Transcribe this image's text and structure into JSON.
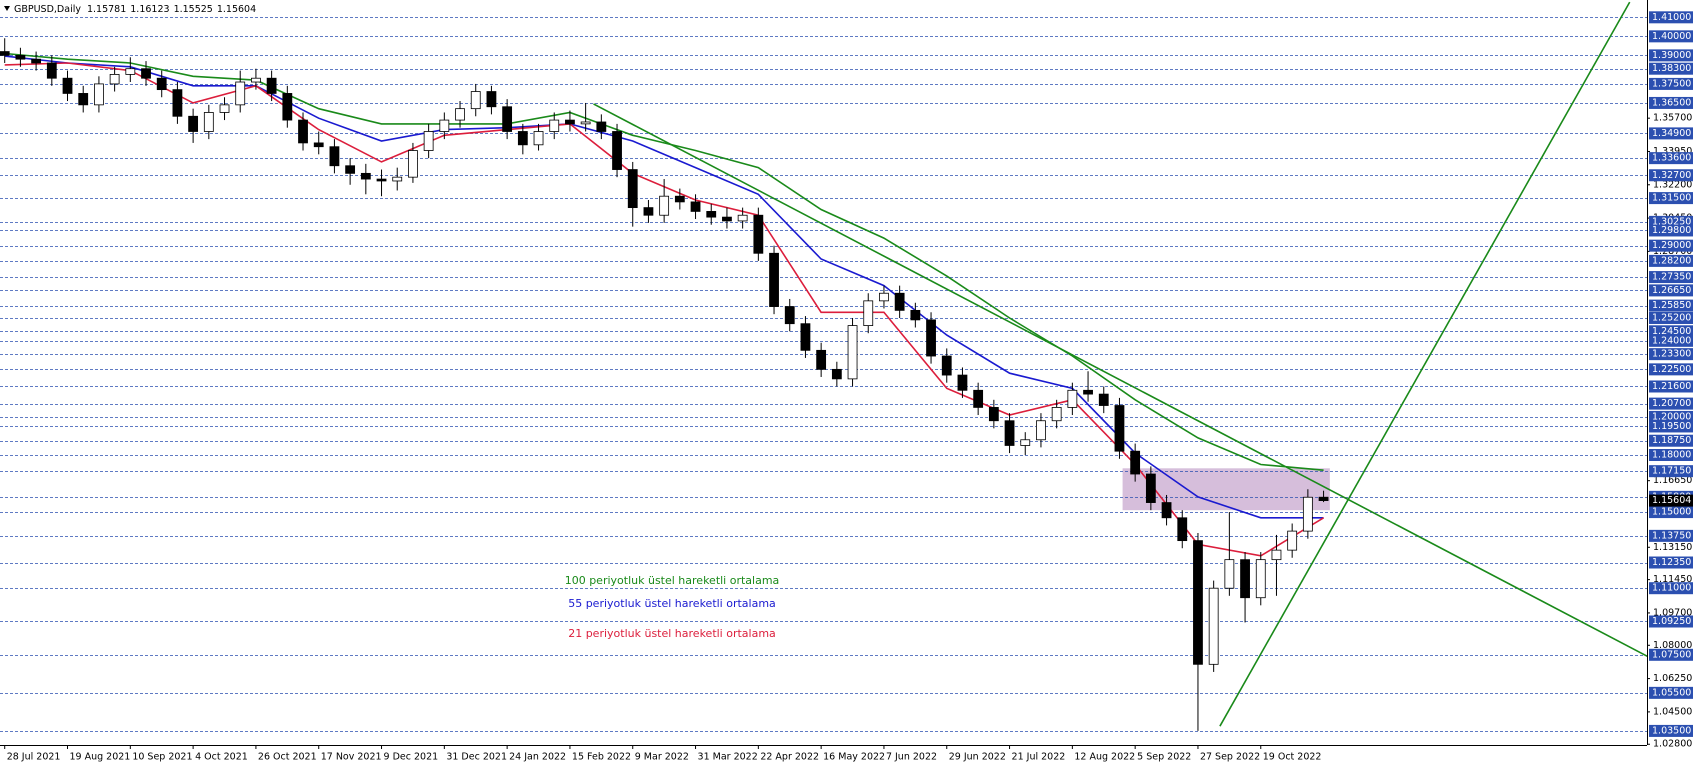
{
  "chart_data": {
    "type": "candlestick",
    "symbol": "GBPUSD,Daily",
    "xlim": [
      -0.3,
      104.6
    ],
    "ylim": [
      1.0276,
      1.4191
    ],
    "xticks": [
      {
        "value": 0,
        "label": "28 Jul 2021"
      },
      {
        "value": 4,
        "label": "19 Aug 2021"
      },
      {
        "value": 8,
        "label": "10 Sep 2021"
      },
      {
        "value": 12,
        "label": "4 Oct 2021"
      },
      {
        "value": 16,
        "label": "26 Oct 2021"
      },
      {
        "value": 20,
        "label": "17 Nov 2021"
      },
      {
        "value": 24,
        "label": "9 Dec 2021"
      },
      {
        "value": 28,
        "label": "31 Dec 2021"
      },
      {
        "value": 32,
        "label": "24 Jan 2022"
      },
      {
        "value": 36,
        "label": "15 Feb 2022"
      },
      {
        "value": 40,
        "label": "9 Mar 2022"
      },
      {
        "value": 44,
        "label": "31 Mar 2022"
      },
      {
        "value": 48,
        "label": "22 Apr 2022"
      },
      {
        "value": 52,
        "label": "16 May 2022"
      },
      {
        "value": 56,
        "label": "7 Jun 2022"
      },
      {
        "value": 60,
        "label": "29 Jun 2022"
      },
      {
        "value": 64,
        "label": "21 Jul 2022"
      },
      {
        "value": 68,
        "label": "12 Aug 2022"
      },
      {
        "value": 72,
        "label": "5 Sep 2022"
      },
      {
        "value": 76,
        "label": "27 Sep 2022"
      },
      {
        "value": 80,
        "label": "19 Oct 2022"
      }
    ],
    "yticks": [
      {
        "value": 1.357,
        "label": "1.35700"
      },
      {
        "value": 1.3395,
        "label": "1.33950"
      },
      {
        "value": 1.322,
        "label": "1.32200"
      },
      {
        "value": 1.3045,
        "label": "1.30450"
      },
      {
        "value": 1.287,
        "label": "1.28700"
      },
      {
        "value": 1.1665,
        "label": "1.16650"
      },
      {
        "value": 1.1315,
        "label": "1.13150"
      },
      {
        "value": 1.1145,
        "label": "1.11450"
      },
      {
        "value": 1.097,
        "label": "1.09700"
      },
      {
        "value": 1.08,
        "label": "1.08000"
      },
      {
        "value": 1.0625,
        "label": "1.06250"
      },
      {
        "value": 1.045,
        "label": "1.04500"
      },
      {
        "value": 1.028,
        "label": "1.02800"
      }
    ],
    "levels": [
      {
        "value": 1.41,
        "label": "1.41000"
      },
      {
        "value": 1.4,
        "label": "1.40000"
      },
      {
        "value": 1.39,
        "label": "1.39000"
      },
      {
        "value": 1.383,
        "label": "1.38300"
      },
      {
        "value": 1.375,
        "label": "1.37500"
      },
      {
        "value": 1.365,
        "label": "1.36500"
      },
      {
        "value": 1.349,
        "label": "1.34900"
      },
      {
        "value": 1.336,
        "label": "1.33600"
      },
      {
        "value": 1.327,
        "label": "1.32700"
      },
      {
        "value": 1.315,
        "label": "1.31500"
      },
      {
        "value": 1.3025,
        "label": "1.30250"
      },
      {
        "value": 1.298,
        "label": "1.29800"
      },
      {
        "value": 1.29,
        "label": "1.29000"
      },
      {
        "value": 1.282,
        "label": "1.28200"
      },
      {
        "value": 1.2735,
        "label": "1.27350"
      },
      {
        "value": 1.2665,
        "label": "1.26650"
      },
      {
        "value": 1.2585,
        "label": "1.25850"
      },
      {
        "value": 1.252,
        "label": "1.25200"
      },
      {
        "value": 1.245,
        "label": "1.24500"
      },
      {
        "value": 1.24,
        "label": "1.24000"
      },
      {
        "value": 1.233,
        "label": "1.23300"
      },
      {
        "value": 1.225,
        "label": "1.22500"
      },
      {
        "value": 1.216,
        "label": "1.21600"
      },
      {
        "value": 1.207,
        "label": "1.20700"
      },
      {
        "value": 1.2,
        "label": "1.20000"
      },
      {
        "value": 1.195,
        "label": "1.19500"
      },
      {
        "value": 1.1875,
        "label": "1.18750"
      },
      {
        "value": 1.18,
        "label": "1.18000"
      },
      {
        "value": 1.1715,
        "label": "1.17150"
      },
      {
        "value": 1.158,
        "label": "1.15800"
      },
      {
        "value": 1.15,
        "label": "1.15000"
      },
      {
        "value": 1.1375,
        "label": "1.13750"
      },
      {
        "value": 1.1235,
        "label": "1.12350"
      },
      {
        "value": 1.11,
        "label": "1.11000"
      },
      {
        "value": 1.0925,
        "label": "1.09250"
      },
      {
        "value": 1.075,
        "label": "1.07500"
      },
      {
        "value": 1.055,
        "label": "1.05500"
      },
      {
        "value": 1.035,
        "label": "1.03500"
      }
    ],
    "level_color": "#2b4fb0",
    "candle_color": "#000000",
    "candles": [
      [
        1.392,
        1.399,
        1.386,
        1.39
      ],
      [
        1.39,
        1.394,
        1.384,
        1.388
      ],
      [
        1.388,
        1.392,
        1.382,
        1.386
      ],
      [
        1.386,
        1.39,
        1.374,
        1.378
      ],
      [
        1.378,
        1.382,
        1.366,
        1.37
      ],
      [
        1.37,
        1.374,
        1.36,
        1.364
      ],
      [
        1.364,
        1.379,
        1.36,
        1.375
      ],
      [
        1.375,
        1.384,
        1.371,
        1.38
      ],
      [
        1.38,
        1.389,
        1.376,
        1.383
      ],
      [
        1.383,
        1.387,
        1.374,
        1.378
      ],
      [
        1.378,
        1.382,
        1.368,
        1.372
      ],
      [
        1.372,
        1.376,
        1.354,
        1.358
      ],
      [
        1.358,
        1.362,
        1.344,
        1.35
      ],
      [
        1.35,
        1.364,
        1.346,
        1.36
      ],
      [
        1.36,
        1.368,
        1.356,
        1.364
      ],
      [
        1.364,
        1.382,
        1.36,
        1.376
      ],
      [
        1.376,
        1.383,
        1.372,
        1.378
      ],
      [
        1.378,
        1.382,
        1.366,
        1.37
      ],
      [
        1.37,
        1.374,
        1.352,
        1.356
      ],
      [
        1.356,
        1.36,
        1.34,
        1.344
      ],
      [
        1.344,
        1.35,
        1.338,
        1.342
      ],
      [
        1.342,
        1.346,
        1.328,
        1.332
      ],
      [
        1.332,
        1.336,
        1.322,
        1.328
      ],
      [
        1.328,
        1.333,
        1.317,
        1.325
      ],
      [
        1.325,
        1.33,
        1.316,
        1.324
      ],
      [
        1.324,
        1.331,
        1.319,
        1.326
      ],
      [
        1.326,
        1.344,
        1.323,
        1.34
      ],
      [
        1.34,
        1.354,
        1.336,
        1.35
      ],
      [
        1.35,
        1.36,
        1.346,
        1.356
      ],
      [
        1.356,
        1.366,
        1.352,
        1.362
      ],
      [
        1.362,
        1.375,
        1.358,
        1.371
      ],
      [
        1.371,
        1.374,
        1.359,
        1.363
      ],
      [
        1.363,
        1.367,
        1.346,
        1.35
      ],
      [
        1.35,
        1.354,
        1.338,
        1.343
      ],
      [
        1.343,
        1.354,
        1.34,
        1.35
      ],
      [
        1.35,
        1.36,
        1.346,
        1.356
      ],
      [
        1.356,
        1.361,
        1.35,
        1.354
      ],
      [
        1.354,
        1.365,
        1.35,
        1.355
      ],
      [
        1.355,
        1.359,
        1.346,
        1.35
      ],
      [
        1.35,
        1.354,
        1.326,
        1.33
      ],
      [
        1.33,
        1.334,
        1.3,
        1.31
      ],
      [
        1.31,
        1.314,
        1.302,
        1.306
      ],
      [
        1.306,
        1.325,
        1.302,
        1.316
      ],
      [
        1.316,
        1.32,
        1.309,
        1.313
      ],
      [
        1.313,
        1.317,
        1.304,
        1.308
      ],
      [
        1.308,
        1.312,
        1.301,
        1.305
      ],
      [
        1.305,
        1.31,
        1.299,
        1.303
      ],
      [
        1.303,
        1.31,
        1.299,
        1.306
      ],
      [
        1.306,
        1.31,
        1.282,
        1.286
      ],
      [
        1.286,
        1.29,
        1.254,
        1.258
      ],
      [
        1.258,
        1.262,
        1.245,
        1.249
      ],
      [
        1.249,
        1.253,
        1.231,
        1.235
      ],
      [
        1.235,
        1.239,
        1.221,
        1.225
      ],
      [
        1.225,
        1.229,
        1.216,
        1.22
      ],
      [
        1.22,
        1.252,
        1.216,
        1.248
      ],
      [
        1.248,
        1.265,
        1.244,
        1.261
      ],
      [
        1.261,
        1.269,
        1.257,
        1.265
      ],
      [
        1.265,
        1.269,
        1.252,
        1.256
      ],
      [
        1.256,
        1.26,
        1.247,
        1.251
      ],
      [
        1.251,
        1.255,
        1.228,
        1.232
      ],
      [
        1.232,
        1.236,
        1.218,
        1.222
      ],
      [
        1.222,
        1.226,
        1.21,
        1.214
      ],
      [
        1.214,
        1.218,
        1.201,
        1.205
      ],
      [
        1.205,
        1.209,
        1.194,
        1.198
      ],
      [
        1.198,
        1.202,
        1.181,
        1.185
      ],
      [
        1.185,
        1.192,
        1.18,
        1.188
      ],
      [
        1.188,
        1.202,
        1.184,
        1.198
      ],
      [
        1.198,
        1.209,
        1.194,
        1.205
      ],
      [
        1.205,
        1.218,
        1.201,
        1.214
      ],
      [
        1.214,
        1.224,
        1.208,
        1.212
      ],
      [
        1.212,
        1.216,
        1.202,
        1.206
      ],
      [
        1.206,
        1.21,
        1.178,
        1.182
      ],
      [
        1.182,
        1.186,
        1.166,
        1.17
      ],
      [
        1.17,
        1.174,
        1.151,
        1.155
      ],
      [
        1.155,
        1.159,
        1.143,
        1.147
      ],
      [
        1.147,
        1.151,
        1.131,
        1.135
      ],
      [
        1.135,
        1.139,
        1.035,
        1.07
      ],
      [
        1.07,
        1.114,
        1.066,
        1.11
      ],
      [
        1.11,
        1.15,
        1.106,
        1.125
      ],
      [
        1.125,
        1.129,
        1.092,
        1.105
      ],
      [
        1.105,
        1.129,
        1.101,
        1.125
      ],
      [
        1.125,
        1.138,
        1.106,
        1.13
      ],
      [
        1.13,
        1.144,
        1.126,
        1.14
      ],
      [
        1.14,
        1.162,
        1.136,
        1.1578
      ],
      [
        1.15781,
        1.16123,
        1.15525,
        1.15604
      ]
    ],
    "series": [
      {
        "name": "100 periyotluk üstel hareketli ortalama",
        "color": "#1a8a1a",
        "x": [
          0,
          4,
          8,
          12,
          16,
          20,
          24,
          28,
          32,
          36,
          40,
          44,
          48,
          52,
          56,
          60,
          64,
          68,
          72,
          76,
          80,
          84
        ],
        "values": [
          1.391,
          1.388,
          1.386,
          1.379,
          1.377,
          1.362,
          1.354,
          1.354,
          1.354,
          1.36,
          1.348,
          1.34,
          1.331,
          1.309,
          1.294,
          1.274,
          1.252,
          1.232,
          1.209,
          1.189,
          1.175,
          1.172
        ]
      },
      {
        "name": "55 periyotluk üstel hareketli ortalama",
        "color": "#1a1ad0",
        "x": [
          0,
          4,
          8,
          12,
          16,
          20,
          24,
          28,
          32,
          36,
          40,
          44,
          48,
          52,
          56,
          60,
          64,
          68,
          72,
          76,
          80,
          84
        ],
        "values": [
          1.3896,
          1.386,
          1.384,
          1.374,
          1.374,
          1.357,
          1.345,
          1.351,
          1.352,
          1.354,
          1.345,
          1.331,
          1.317,
          1.283,
          1.269,
          1.243,
          1.223,
          1.215,
          1.181,
          1.158,
          1.147,
          1.147
        ]
      },
      {
        "name": "21 periyotluk üstel hareketli ortalama",
        "color": "#dc1e3c",
        "x": [
          0,
          4,
          8,
          12,
          16,
          20,
          24,
          28,
          32,
          36,
          40,
          44,
          48,
          52,
          56,
          60,
          64,
          68,
          72,
          76,
          80,
          84
        ],
        "values": [
          1.385,
          1.386,
          1.382,
          1.365,
          1.374,
          1.351,
          1.334,
          1.348,
          1.351,
          1.354,
          1.328,
          1.314,
          1.306,
          1.255,
          1.255,
          1.215,
          1.201,
          1.209,
          1.175,
          1.133,
          1.127,
          1.147
        ]
      }
    ],
    "trendlines": [
      {
        "color": "#1a8a1a",
        "x": [
          37.5,
          104.9
        ],
        "y": [
          1.3645,
          1.073
        ]
      },
      {
        "color": "#1a8a1a",
        "x": [
          77.4,
          103.5
        ],
        "y": [
          1.0375,
          1.418
        ]
      }
    ],
    "rectangle": {
      "color": "#c8a8cf",
      "x": [
        71.2,
        84.4
      ],
      "y": [
        1.151,
        1.173
      ]
    }
  }
}
